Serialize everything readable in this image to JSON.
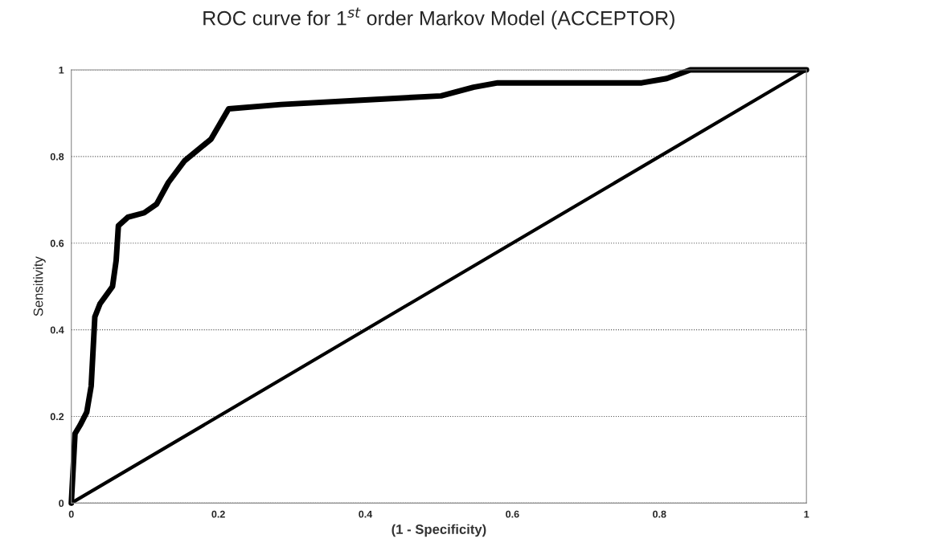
{
  "chart_data": {
    "type": "line",
    "title": "ROC curve for 1$^{st}$ order Markov Model (ACCEPTOR)",
    "xlabel": "(1 - Specificity)",
    "ylabel": "Sensitivity",
    "series": [
      {
        "color": "#000000",
        "x": [
          0,
          0.005,
          0.012,
          0.021,
          0.027,
          0.032,
          0.039,
          0.056,
          0.061,
          0.064,
          0.077,
          0.099,
          0.116,
          0.132,
          0.154,
          0.19,
          0.214,
          0.285,
          0.394,
          0.503,
          0.547,
          0.58,
          0.776,
          0.81,
          0.842,
          1
        ],
        "values": [
          0,
          0.16,
          0.18,
          0.21,
          0.27,
          0.43,
          0.46,
          0.5,
          0.56,
          0.64,
          0.66,
          0.67,
          0.69,
          0.74,
          0.79,
          0.84,
          0.91,
          0.92,
          0.93,
          0.94,
          0.96,
          0.97,
          0.97,
          0.98,
          1,
          1
        ]
      },
      {
        "color": "#000000",
        "x": [
          0,
          1
        ],
        "values": [
          0,
          1
        ]
      }
    ],
    "xlim": [
      0,
      1
    ],
    "ylim": [
      0,
      1
    ],
    "xticks": [
      0,
      0.2,
      0.4,
      0.6,
      0.8,
      1
    ],
    "yticks": [
      0,
      0.2,
      0.4,
      0.6,
      0.8,
      1
    ],
    "grid": "y",
    "legend": false,
    "marker": "none",
    "line_style": "solid"
  }
}
